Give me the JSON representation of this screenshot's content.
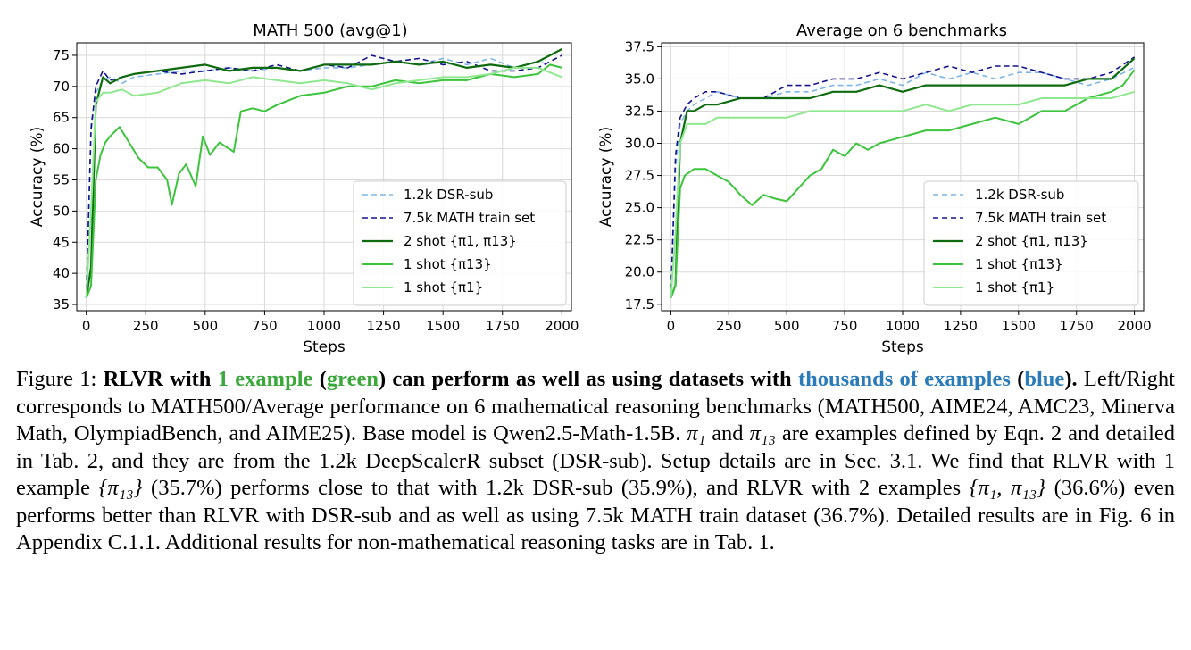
{
  "figure": {
    "colors": {
      "dsr_sub": "#7fb6e6",
      "math_train": "#14148c",
      "two_shot": "#0e6b0e",
      "one_shot_13": "#3cc43c",
      "one_shot_1": "#8fe88f",
      "grid": "#d9d9d9"
    }
  },
  "chart_data": [
    {
      "type": "line",
      "title": "MATH 500 (avg@1)",
      "xlabel": "Steps",
      "ylabel": "Accuracy (%)",
      "xlim": [
        -40,
        2040
      ],
      "ylim": [
        34,
        77
      ],
      "xticks": [
        "0",
        "250",
        "500",
        "750",
        "1000",
        "1250",
        "1500",
        "1750",
        "2000"
      ],
      "yticks": [
        "35",
        "40",
        "45",
        "50",
        "55",
        "60",
        "65",
        "70",
        "75"
      ],
      "legend_position": "lower-right",
      "series": [
        {
          "key": "dsr",
          "name": "1.2k DSR-sub",
          "style": "dashed",
          "x": [
            0,
            20,
            40,
            70,
            100,
            150,
            200,
            300,
            400,
            500,
            600,
            700,
            800,
            900,
            1000,
            1100,
            1200,
            1300,
            1400,
            1500,
            1600,
            1700,
            1800,
            1900,
            2000
          ],
          "y": [
            36,
            64,
            69,
            71,
            71.5,
            70.5,
            71.5,
            72,
            72.5,
            72.5,
            73,
            72.5,
            73,
            72.5,
            73,
            73,
            73.5,
            74,
            73.5,
            74.5,
            73.5,
            74.5,
            73,
            74,
            73
          ]
        },
        {
          "key": "math",
          "name": "7.5k MATH train set",
          "style": "dashed",
          "x": [
            0,
            20,
            40,
            70,
            100,
            150,
            200,
            300,
            400,
            500,
            600,
            700,
            800,
            900,
            1000,
            1100,
            1200,
            1300,
            1400,
            1500,
            1600,
            1700,
            1800,
            1900,
            2000
          ],
          "y": [
            36,
            63,
            70,
            72.5,
            71,
            71.5,
            72,
            72.5,
            72,
            72.5,
            73,
            72.5,
            73.5,
            72.5,
            73.5,
            73,
            75,
            74,
            74.5,
            73.5,
            74,
            72.5,
            72.5,
            73,
            75
          ]
        },
        {
          "key": "two",
          "name": "2 shot {π1, π13}",
          "style": "solid",
          "x": [
            0,
            20,
            40,
            70,
            100,
            150,
            200,
            300,
            400,
            500,
            600,
            700,
            800,
            900,
            1000,
            1100,
            1200,
            1300,
            1400,
            1500,
            1600,
            1700,
            1800,
            1900,
            2000
          ],
          "y": [
            36,
            41,
            67,
            71.5,
            70.5,
            71.5,
            72,
            72.5,
            73,
            73.5,
            72.5,
            73,
            73,
            72.5,
            73.5,
            73.5,
            73.5,
            74,
            73.5,
            74,
            73,
            73.5,
            73,
            74,
            76
          ]
        },
        {
          "key": "one13",
          "name": "1 shot {π13}",
          "style": "solid",
          "x": [
            0,
            20,
            40,
            60,
            80,
            100,
            140,
            180,
            220,
            260,
            300,
            340,
            360,
            390,
            420,
            460,
            490,
            520,
            560,
            600,
            620,
            650,
            700,
            750,
            800,
            900,
            1000,
            1100,
            1200,
            1300,
            1400,
            1500,
            1600,
            1700,
            1800,
            1900,
            1950,
            2000
          ],
          "y": [
            36,
            38,
            55,
            59,
            61,
            62,
            63.5,
            61,
            58.5,
            57,
            57,
            55,
            51,
            56,
            57.5,
            54,
            62,
            59,
            61,
            60,
            59.5,
            66,
            66.5,
            66,
            67,
            68.5,
            69,
            70,
            70,
            71,
            70.5,
            71,
            71,
            72,
            71.5,
            72,
            73.5,
            73
          ]
        },
        {
          "key": "one1",
          "name": "1 shot {π1}",
          "style": "solid",
          "x": [
            0,
            20,
            40,
            70,
            100,
            150,
            200,
            300,
            400,
            500,
            600,
            700,
            800,
            900,
            1000,
            1100,
            1200,
            1300,
            1400,
            1500,
            1600,
            1700,
            1800,
            1900,
            2000
          ],
          "y": [
            36,
            50,
            67.5,
            69,
            69,
            69.5,
            68.5,
            69,
            70.5,
            71,
            70.5,
            71.5,
            71,
            70.5,
            71,
            70.5,
            69.5,
            70.5,
            71,
            71.5,
            71.5,
            72,
            73,
            73,
            71.5
          ]
        }
      ]
    },
    {
      "type": "line",
      "title": "Average on 6 benchmarks",
      "xlabel": "Steps",
      "ylabel": "Accuracy (%)",
      "xlim": [
        -40,
        2040
      ],
      "ylim": [
        17,
        37.8
      ],
      "xticks": [
        "0",
        "250",
        "500",
        "750",
        "1000",
        "1250",
        "1500",
        "1750",
        "2000"
      ],
      "yticks": [
        "17.5",
        "20.0",
        "22.5",
        "25.0",
        "27.5",
        "30.0",
        "32.5",
        "35.0",
        "37.5"
      ],
      "legend_position": "lower-right",
      "series": [
        {
          "key": "dsr",
          "name": "1.2k DSR-sub",
          "style": "dashed",
          "x": [
            0,
            20,
            40,
            70,
            100,
            150,
            200,
            300,
            400,
            500,
            600,
            700,
            800,
            900,
            1000,
            1100,
            1200,
            1300,
            1400,
            1500,
            1600,
            1700,
            1800,
            1900,
            2000
          ],
          "y": [
            18,
            28,
            31.5,
            32.5,
            33,
            33.5,
            34,
            33.5,
            33.5,
            34,
            34,
            34.5,
            34.5,
            35,
            34.5,
            35.5,
            35,
            35.5,
            35,
            35.5,
            35.5,
            35,
            34.5,
            35,
            35.9
          ]
        },
        {
          "key": "math",
          "name": "7.5k MATH train set",
          "style": "dashed",
          "x": [
            0,
            20,
            40,
            70,
            100,
            150,
            200,
            300,
            400,
            500,
            600,
            700,
            800,
            900,
            1000,
            1100,
            1200,
            1300,
            1400,
            1500,
            1600,
            1700,
            1800,
            1900,
            2000
          ],
          "y": [
            18,
            29,
            32,
            33,
            33.5,
            34,
            34,
            33.5,
            33.5,
            34.5,
            34.5,
            35,
            35,
            35.5,
            35,
            35.5,
            36,
            35.5,
            36,
            36,
            35.5,
            35,
            35,
            35.5,
            36.7
          ]
        },
        {
          "key": "two",
          "name": "2 shot {π1, π13}",
          "style": "solid",
          "x": [
            0,
            20,
            40,
            70,
            100,
            150,
            200,
            300,
            400,
            500,
            600,
            700,
            800,
            900,
            1000,
            1100,
            1200,
            1300,
            1400,
            1500,
            1600,
            1700,
            1800,
            1900,
            2000
          ],
          "y": [
            18,
            19,
            30,
            32.5,
            32.5,
            33,
            33,
            33.5,
            33.5,
            33.5,
            33.5,
            34,
            34,
            34.5,
            34,
            34.5,
            34.5,
            34.5,
            34.5,
            34.5,
            34.5,
            34.5,
            35,
            35,
            36.6
          ]
        },
        {
          "key": "one13",
          "name": "1 shot {π13}",
          "style": "solid",
          "x": [
            0,
            20,
            40,
            60,
            100,
            150,
            200,
            250,
            300,
            350,
            400,
            450,
            500,
            550,
            600,
            650,
            700,
            750,
            800,
            850,
            900,
            1000,
            1100,
            1200,
            1300,
            1400,
            1500,
            1600,
            1700,
            1800,
            1900,
            1950,
            2000
          ],
          "y": [
            18,
            19,
            26.5,
            27.5,
            28,
            28,
            27.5,
            27,
            26,
            25.2,
            26,
            25.7,
            25.5,
            26.5,
            27.5,
            28,
            29.5,
            29,
            30,
            29.5,
            30,
            30.5,
            31,
            31,
            31.5,
            32,
            31.5,
            32.5,
            32.5,
            33.5,
            34,
            34.5,
            35.7
          ]
        },
        {
          "key": "one1",
          "name": "1 shot {π1}",
          "style": "solid",
          "x": [
            0,
            20,
            40,
            70,
            100,
            150,
            200,
            300,
            400,
            500,
            600,
            700,
            800,
            900,
            1000,
            1100,
            1200,
            1300,
            1400,
            1500,
            1600,
            1700,
            1800,
            1900,
            2000
          ],
          "y": [
            18,
            23,
            30,
            31.5,
            31.5,
            31.5,
            32,
            32,
            32,
            32,
            32.5,
            32.5,
            32.5,
            32.5,
            32.5,
            33,
            32.5,
            33,
            33,
            33,
            33.5,
            33.5,
            33.5,
            33.5,
            34
          ]
        }
      ]
    }
  ],
  "caption": {
    "label": "Figure 1:",
    "b1": "RLVR with",
    "green1": "1 example",
    "b2": "(",
    "green2": "green",
    "b3": ") can perform as well as using datasets with",
    "blue1": "thousands of examples",
    "b4": "(",
    "blue2": "blue",
    "b5": ").",
    "t1": "Left/Right corresponds to MATH500/Average performance on 6 mathematical reasoning benchmarks (MATH500, AIME24, AMC23, Minerva Math, OlympiadBench, and AIME25). Base model is Qwen2.5-Math-1.5B.",
    "m1": "π₁",
    "t2": "and",
    "m2": "π₁₃",
    "t3": "are examples defined by Eqn. 2 and detailed in Tab. 2, and they are from the 1.2k DeepScalerR subset (DSR-sub). Setup details are in Sec. 3.1. We find that RLVR with 1 example",
    "m3": "{π₁₃}",
    "t4": "(35.7%) performs close to that with 1.2k DSR-sub (35.9%), and RLVR with 2 examples",
    "m4": "{π₁, π₁₃}",
    "t5": "(36.6%) even performs better than RLVR with DSR-sub and as well as using 7.5k MATH train dataset (36.7%). Detailed results are in Fig. 6 in Appendix C.1.1. Additional results for non-mathematical reasoning tasks are in Tab. 1."
  }
}
